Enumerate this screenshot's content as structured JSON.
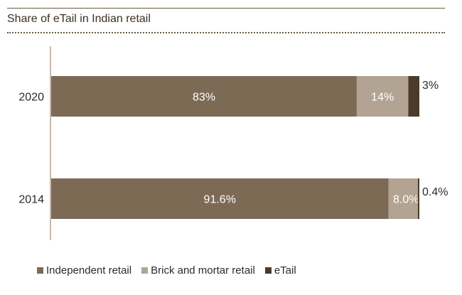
{
  "chart_data": {
    "type": "bar",
    "orientation": "horizontal",
    "stacked": true,
    "title": "Share of eTail in Indian retail",
    "categories": [
      "2020",
      "2014"
    ],
    "series": [
      {
        "name": "Independent retail",
        "values": [
          83,
          91.6
        ],
        "labels": [
          "83%",
          "91.6%"
        ],
        "color": "#7d6a55"
      },
      {
        "name": "Brick and mortar retail",
        "values": [
          14,
          8.0
        ],
        "labels": [
          "14%",
          "8.0%"
        ],
        "color": "#b3a393"
      },
      {
        "name": "eTail",
        "values": [
          3,
          0.4
        ],
        "labels": [
          "3%",
          "0.4%"
        ],
        "color": "#4a3b2a"
      }
    ],
    "xlim": [
      0,
      100
    ],
    "legend_position": "bottom-left",
    "grid": false
  }
}
